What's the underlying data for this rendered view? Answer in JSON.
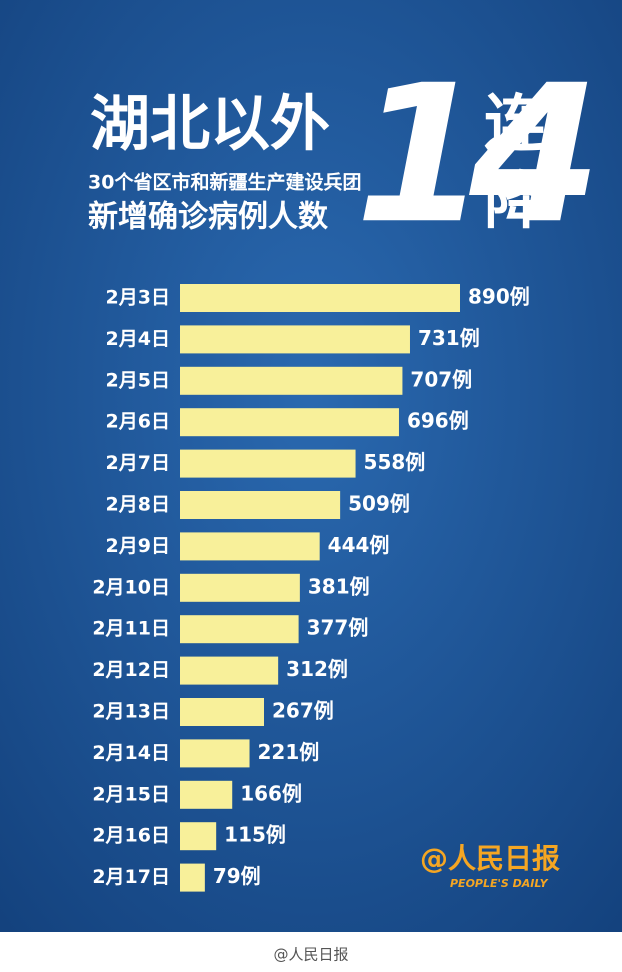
{
  "chart_data": {
    "type": "bar",
    "orientation": "horizontal",
    "title": "湖北以外",
    "subtitle": [
      "30个省区市和新疆生产建设兵团",
      "新增确诊病例人数"
    ],
    "headline_number": "14",
    "headline_text": [
      "连",
      "降"
    ],
    "categories": [
      "2月3日",
      "2月4日",
      "2月5日",
      "2月6日",
      "2月7日",
      "2月8日",
      "2月9日",
      "2月10日",
      "2月11日",
      "2月12日",
      "2月13日",
      "2月14日",
      "2月15日",
      "2月16日",
      "2月17日"
    ],
    "values": [
      890,
      731,
      707,
      696,
      558,
      509,
      444,
      381,
      377,
      312,
      267,
      221,
      166,
      115,
      79
    ],
    "value_labels": [
      "890例",
      "731例",
      "707例",
      "696例",
      "558例",
      "509例",
      "444例",
      "381例",
      "377例",
      "312例",
      "267例",
      "221例",
      "166例",
      "115例",
      "79例"
    ],
    "color": "#f8f09a",
    "logo": "@人民日报",
    "logo_en": "PEOPLE'S DAILY",
    "watermark": "@人民日报"
  }
}
